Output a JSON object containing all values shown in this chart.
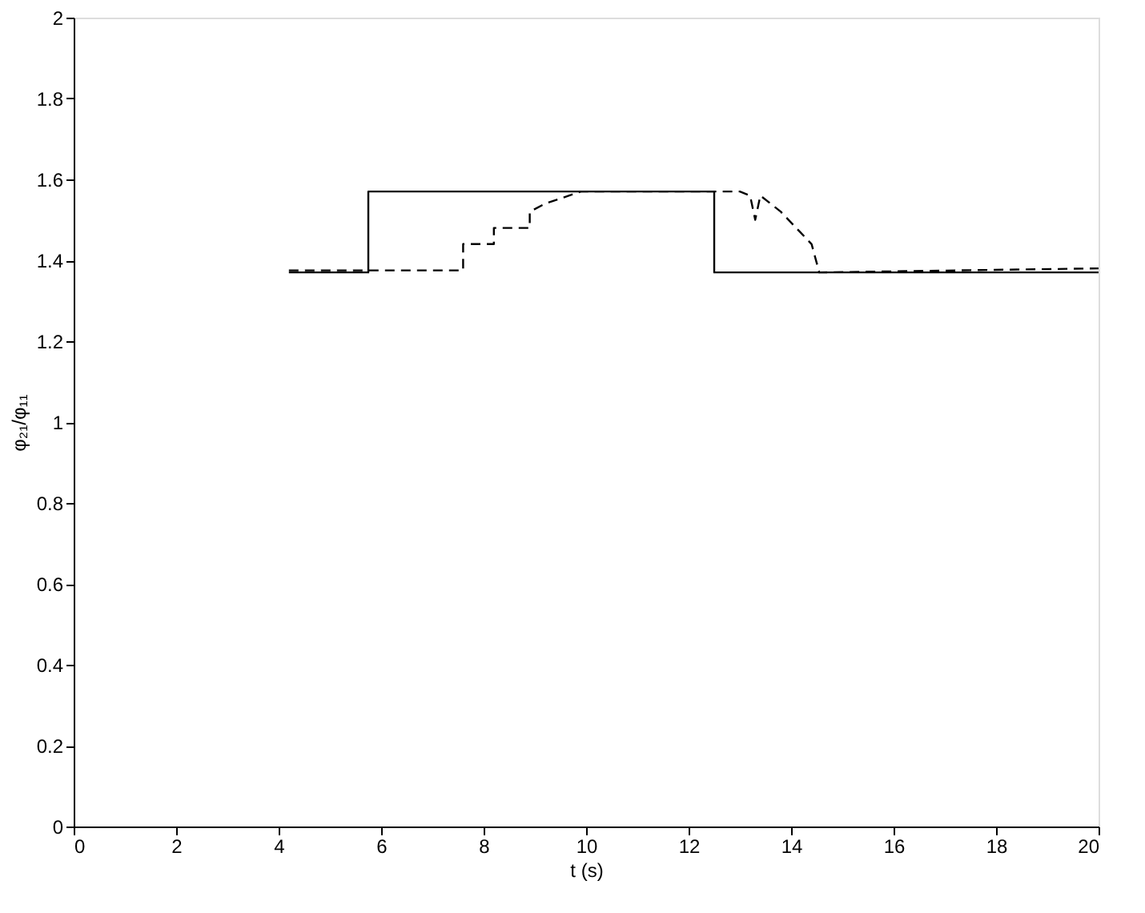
{
  "chart_data": {
    "type": "line",
    "xlabel": "t (s)",
    "ylabel": "φ₂₁/φ₁₁",
    "xlim": [
      0,
      20
    ],
    "xticks": [
      0,
      2,
      4,
      6,
      8,
      10,
      12,
      14,
      16,
      18,
      20
    ],
    "ylim": [
      0,
      2
    ],
    "yticks": [
      0,
      0.2,
      0.4,
      0.6,
      0.8,
      1,
      1.2,
      1.4,
      1.6,
      1.8,
      2
    ],
    "grid": false,
    "series": [
      {
        "color": "#000000",
        "line_style": "solid",
        "x": [
          4.2,
          5.75,
          5.75,
          12.5,
          12.5,
          20
        ],
        "values": [
          1.37,
          1.37,
          1.57,
          1.57,
          1.37,
          1.37
        ]
      },
      {
        "color": "#000000",
        "line_style": "dashed",
        "x": [
          4.2,
          7.6,
          7.6,
          8.2,
          8.2,
          8.9,
          8.9,
          9.2,
          9.9,
          13.0,
          13.2,
          13.3,
          13.4,
          13.8,
          14.1,
          14.4,
          14.55,
          20
        ],
        "values": [
          1.375,
          1.375,
          1.44,
          1.44,
          1.48,
          1.48,
          1.52,
          1.54,
          1.57,
          1.57,
          1.56,
          1.5,
          1.56,
          1.52,
          1.48,
          1.44,
          1.37,
          1.38
        ]
      }
    ]
  }
}
